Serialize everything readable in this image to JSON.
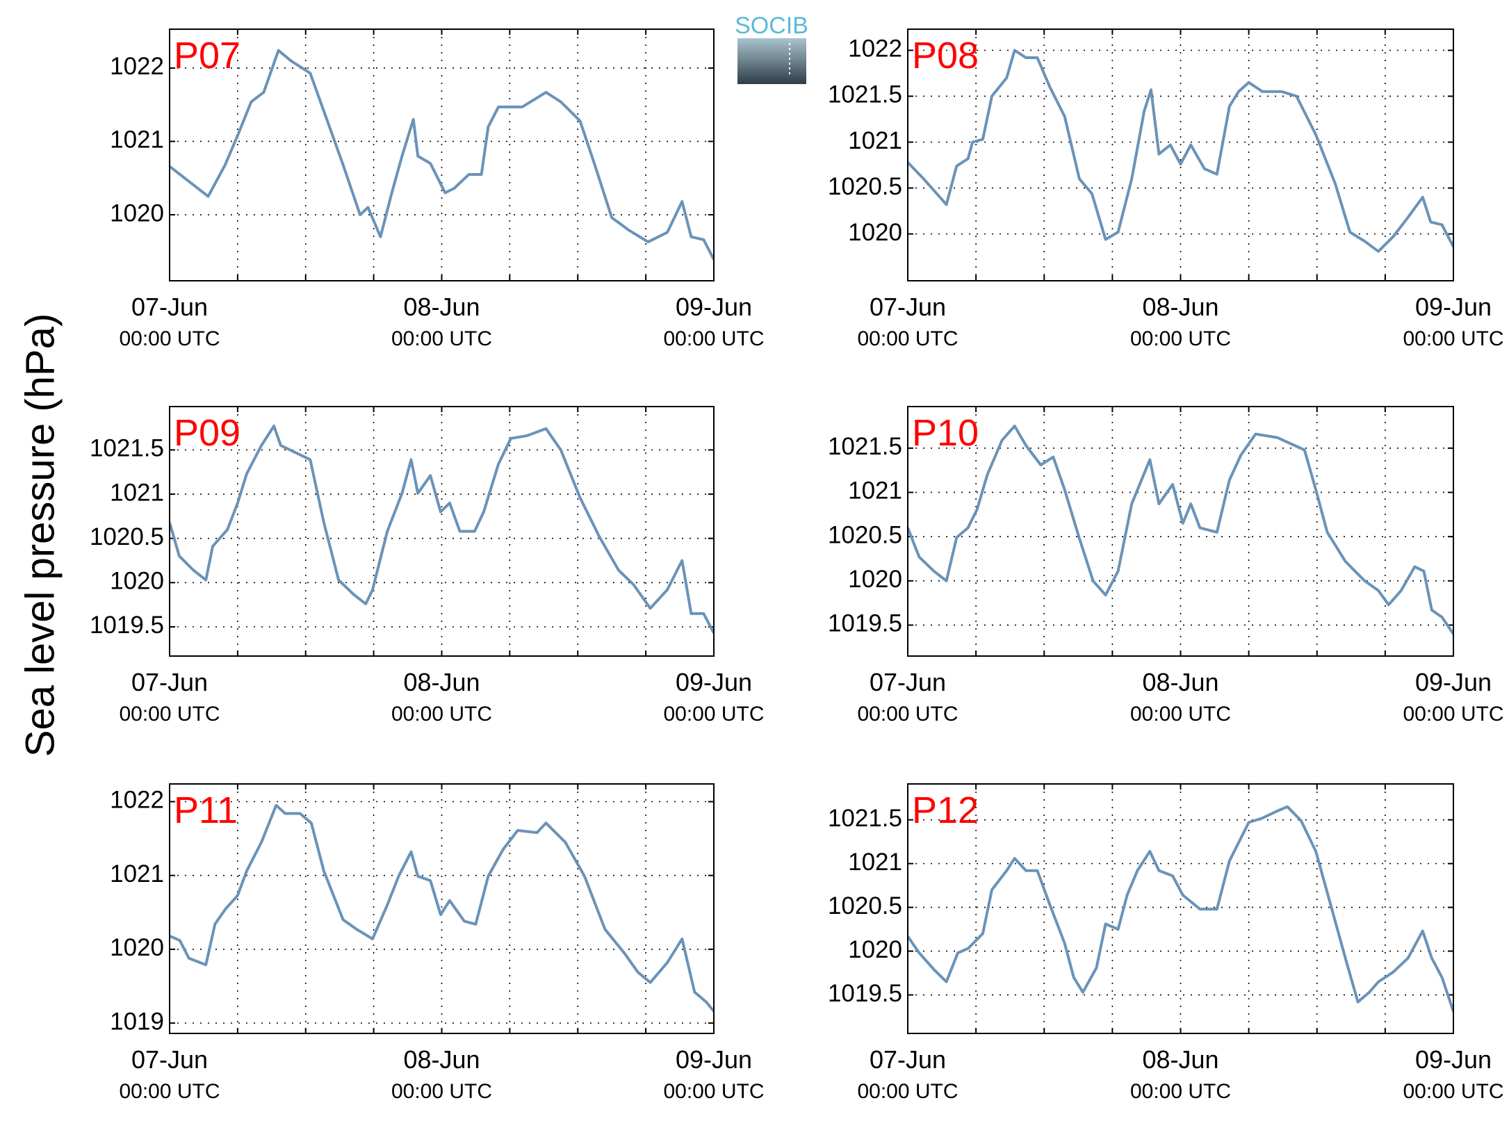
{
  "ylabel": "Sea level pressure (hPa)",
  "logo": "SOCIB",
  "chart_data": [
    {
      "type": "line",
      "title": "P07",
      "color": "#6a93b8",
      "xlim": [
        0,
        48
      ],
      "ylim": [
        1019.1,
        1022.53
      ],
      "xticks": [
        {
          "value": 0,
          "label": "07-Jun",
          "sublabel": "00:00 UTC"
        },
        {
          "value": 24,
          "label": "08-Jun",
          "sublabel": "00:00 UTC"
        },
        {
          "value": 48,
          "label": "09-Jun",
          "sublabel": "00:00 UTC"
        }
      ],
      "xminor": [
        6,
        12,
        18,
        30,
        36,
        42
      ],
      "yticks": [
        1020,
        1021,
        1022
      ],
      "grid": true,
      "x": [
        0,
        3.4,
        4.9,
        6,
        7.2,
        8.3,
        9.6,
        10.7,
        12.4,
        14.1,
        15.3,
        16.8,
        17.5,
        18.6,
        19.6,
        20.5,
        21.5,
        21.9,
        23,
        24.3,
        25.1,
        26.4,
        27.5,
        28.1,
        29,
        31.1,
        33.2,
        34.5,
        36.2,
        37.5,
        39,
        40.5,
        42.2,
        43.9,
        45.2,
        46,
        47.1,
        48
      ],
      "values": [
        1020.66,
        1020.25,
        1020.68,
        1021.08,
        1021.54,
        1021.67,
        1022.24,
        1022.1,
        1021.93,
        1021.2,
        1020.68,
        1020,
        1020.1,
        1019.7,
        1020.3,
        1020.8,
        1021.3,
        1020.8,
        1020.7,
        1020.3,
        1020.36,
        1020.55,
        1020.55,
        1021.2,
        1021.47,
        1021.47,
        1021.67,
        1021.54,
        1021.28,
        1020.68,
        1019.96,
        1019.79,
        1019.63,
        1019.76,
        1020.18,
        1019.7,
        1019.66,
        1019.39
      ]
    },
    {
      "type": "line",
      "title": "P08",
      "color": "#6a93b8",
      "xlim": [
        0,
        48
      ],
      "ylim": [
        1019.49,
        1022.23
      ],
      "xticks": [
        {
          "value": 0,
          "label": "07-Jun",
          "sublabel": "00:00 UTC"
        },
        {
          "value": 24,
          "label": "08-Jun",
          "sublabel": "00:00 UTC"
        },
        {
          "value": 48,
          "label": "09-Jun",
          "sublabel": "00:00 UTC"
        }
      ],
      "xminor": [
        6,
        12,
        18,
        30,
        36,
        42
      ],
      "yticks": [
        1020,
        1020.5,
        1021,
        1021.5,
        1022
      ],
      "grid": true,
      "x": [
        0,
        1.4,
        3.4,
        4.3,
        5.3,
        5.7,
        6.6,
        7.4,
        8.7,
        9.4,
        10.4,
        11.4,
        12.5,
        13.8,
        15.1,
        16.2,
        17.4,
        18.5,
        19.7,
        20.8,
        21.4,
        22.1,
        23.1,
        24,
        24.9,
        26.1,
        27.2,
        28.3,
        29.1,
        30,
        31.2,
        32.9,
        34.2,
        35.9,
        37.6,
        38.9,
        40.2,
        41.4,
        42.7,
        44,
        45.3,
        46,
        47,
        48
      ],
      "values": [
        1020.78,
        1020.6,
        1020.32,
        1020.74,
        1020.82,
        1021,
        1021.03,
        1021.5,
        1021.7,
        1022,
        1021.92,
        1021.92,
        1021.6,
        1021.28,
        1020.6,
        1020.44,
        1019.94,
        1020.02,
        1020.6,
        1021.34,
        1021.57,
        1020.87,
        1020.97,
        1020.76,
        1020.97,
        1020.71,
        1020.65,
        1021.39,
        1021.55,
        1021.65,
        1021.55,
        1021.55,
        1021.5,
        1021.08,
        1020.55,
        1020.02,
        1019.92,
        1019.81,
        1019.97,
        1020.18,
        1020.4,
        1020.13,
        1020.1,
        1019.86
      ]
    },
    {
      "type": "line",
      "title": "P09",
      "color": "#6a93b8",
      "xlim": [
        0,
        48
      ],
      "ylim": [
        1019.17,
        1021.99
      ],
      "xticks": [
        {
          "value": 0,
          "label": "07-Jun",
          "sublabel": "00:00 UTC"
        },
        {
          "value": 24,
          "label": "08-Jun",
          "sublabel": "00:00 UTC"
        },
        {
          "value": 48,
          "label": "09-Jun",
          "sublabel": "00:00 UTC"
        }
      ],
      "xminor": [
        6,
        12,
        18,
        30,
        36,
        42
      ],
      "yticks": [
        1019.5,
        1020,
        1020.5,
        1021,
        1021.5
      ],
      "grid": true,
      "x": [
        0,
        0.85,
        2.1,
        3.2,
        3.8,
        5.1,
        6,
        6.8,
        8.1,
        9.2,
        9.8,
        11.1,
        12.4,
        13.6,
        14.9,
        16.2,
        17.3,
        17.9,
        19.2,
        20.5,
        21.3,
        21.9,
        23,
        23.9,
        24.7,
        25.6,
        26.9,
        27.7,
        29,
        30.1,
        31.5,
        33.2,
        34.5,
        36.2,
        37.9,
        39.6,
        40.9,
        42.4,
        43.9,
        45.2,
        46,
        47.1,
        48
      ],
      "values": [
        1020.68,
        1020.3,
        1020.14,
        1020.03,
        1020.41,
        1020.6,
        1020.9,
        1021.23,
        1021.55,
        1021.77,
        1021.55,
        1021.47,
        1021.39,
        1020.68,
        1020.03,
        1019.87,
        1019.76,
        1019.92,
        1020.58,
        1021.01,
        1021.39,
        1021.01,
        1021.21,
        1020.8,
        1020.9,
        1020.58,
        1020.58,
        1020.8,
        1021.34,
        1021.63,
        1021.66,
        1021.74,
        1021.5,
        1020.96,
        1020.52,
        1020.14,
        1019.98,
        1019.71,
        1019.92,
        1020.25,
        1019.65,
        1019.65,
        1019.43
      ]
    },
    {
      "type": "line",
      "title": "P10",
      "color": "#6a93b8",
      "xlim": [
        0,
        48
      ],
      "ylim": [
        1019.15,
        1021.97
      ],
      "xticks": [
        {
          "value": 0,
          "label": "07-Jun",
          "sublabel": "00:00 UTC"
        },
        {
          "value": 24,
          "label": "08-Jun",
          "sublabel": "00:00 UTC"
        },
        {
          "value": 48,
          "label": "09-Jun",
          "sublabel": "00:00 UTC"
        }
      ],
      "xminor": [
        6,
        12,
        18,
        30,
        36,
        42
      ],
      "yticks": [
        1019.5,
        1020,
        1020.5,
        1021,
        1021.5
      ],
      "grid": true,
      "x": [
        0,
        1,
        2.3,
        3.4,
        4.3,
        5.3,
        6.1,
        7,
        8.3,
        9.4,
        10.4,
        11.7,
        12.8,
        13.8,
        15.1,
        16.3,
        17.4,
        18.5,
        19.7,
        21.3,
        22.1,
        23.3,
        24.2,
        24.9,
        25.7,
        27.2,
        28.3,
        29.3,
        30.6,
        32.5,
        34.9,
        35.9,
        36.9,
        38.5,
        40.2,
        41.4,
        42.3,
        43.4,
        44.6,
        45.4,
        46.1,
        47,
        48
      ],
      "values": [
        1020.6,
        1020.27,
        1020.11,
        1020,
        1020.49,
        1020.6,
        1020.81,
        1021.2,
        1021.59,
        1021.75,
        1021.53,
        1021.31,
        1021.4,
        1021.03,
        1020.48,
        1020,
        1019.84,
        1020.11,
        1020.87,
        1021.37,
        1020.87,
        1021.09,
        1020.65,
        1020.87,
        1020.6,
        1020.55,
        1021.14,
        1021.42,
        1021.66,
        1021.62,
        1021.48,
        1021.03,
        1020.55,
        1020.22,
        1020,
        1019.89,
        1019.73,
        1019.89,
        1020.16,
        1020.11,
        1019.67,
        1019.59,
        1019.4
      ]
    },
    {
      "type": "line",
      "title": "P11",
      "color": "#6a93b8",
      "xlim": [
        0,
        48
      ],
      "ylim": [
        1018.86,
        1022.24
      ],
      "xticks": [
        {
          "value": 0,
          "label": "07-Jun",
          "sublabel": "00:00 UTC"
        },
        {
          "value": 24,
          "label": "08-Jun",
          "sublabel": "00:00 UTC"
        },
        {
          "value": 48,
          "label": "09-Jun",
          "sublabel": "00:00 UTC"
        }
      ],
      "xminor": [
        6,
        12,
        18,
        30,
        36,
        42
      ],
      "yticks": [
        1019,
        1020,
        1021,
        1022
      ],
      "grid": true,
      "x": [
        0,
        0.9,
        1.7,
        3.2,
        4,
        4.9,
        6,
        6.8,
        8.1,
        9.4,
        10.2,
        11.5,
        12.5,
        13.6,
        15.3,
        16.5,
        17.9,
        19.2,
        20.2,
        21.3,
        21.9,
        23,
        23.9,
        24.7,
        26,
        27,
        28.1,
        29.4,
        30.7,
        32.4,
        33.2,
        34.9,
        36.6,
        38.4,
        40.1,
        41.3,
        42.4,
        43.9,
        45.2,
        46.3,
        47.3,
        48
      ],
      "values": [
        1020.18,
        1020.12,
        1019.88,
        1019.79,
        1020.34,
        1020.54,
        1020.73,
        1021.06,
        1021.45,
        1021.95,
        1021.84,
        1021.84,
        1021.71,
        1021.06,
        1020.4,
        1020.27,
        1020.14,
        1020.6,
        1020.99,
        1021.32,
        1020.99,
        1020.93,
        1020.47,
        1020.66,
        1020.38,
        1020.34,
        1020.99,
        1021.35,
        1021.61,
        1021.58,
        1021.71,
        1021.45,
        1020.99,
        1020.27,
        1019.95,
        1019.69,
        1019.55,
        1019.82,
        1020.14,
        1019.42,
        1019.29,
        1019.16
      ]
    },
    {
      "type": "line",
      "title": "P12",
      "color": "#6a93b8",
      "xlim": [
        0,
        48
      ],
      "ylim": [
        1019.06,
        1021.91
      ],
      "xticks": [
        {
          "value": 0,
          "label": "07-Jun",
          "sublabel": "00:00 UTC"
        },
        {
          "value": 24,
          "label": "08-Jun",
          "sublabel": "00:00 UTC"
        },
        {
          "value": 48,
          "label": "09-Jun",
          "sublabel": "00:00 UTC"
        }
      ],
      "xminor": [
        6,
        12,
        18,
        30,
        36,
        42
      ],
      "yticks": [
        1019.5,
        1020,
        1020.5,
        1021,
        1021.5
      ],
      "grid": true,
      "x": [
        0,
        1,
        2.3,
        3.4,
        4.4,
        5.3,
        6.6,
        7.4,
        8.7,
        9.4,
        10.4,
        11.4,
        12.5,
        13.8,
        14.6,
        15.4,
        16.6,
        17.4,
        18.5,
        19.3,
        20.2,
        21.3,
        22.1,
        23.3,
        24.2,
        25.7,
        27.2,
        28.3,
        30,
        31.2,
        32.5,
        33.4,
        34.6,
        35.9,
        37.2,
        38.5,
        39.6,
        40.6,
        41.4,
        42.7,
        44,
        45.3,
        46.1,
        47,
        48
      ],
      "values": [
        1020.17,
        1019.98,
        1019.79,
        1019.65,
        1019.98,
        1020.03,
        1020.2,
        1020.7,
        1020.92,
        1021.06,
        1020.92,
        1020.92,
        1020.53,
        1020.09,
        1019.7,
        1019.53,
        1019.81,
        1020.31,
        1020.25,
        1020.64,
        1020.92,
        1021.14,
        1020.92,
        1020.86,
        1020.64,
        1020.48,
        1020.48,
        1021.03,
        1021.47,
        1021.52,
        1021.6,
        1021.65,
        1021.49,
        1021.14,
        1020.53,
        1019.92,
        1019.42,
        1019.53,
        1019.65,
        1019.76,
        1019.92,
        1020.23,
        1019.92,
        1019.7,
        1019.31
      ]
    }
  ]
}
